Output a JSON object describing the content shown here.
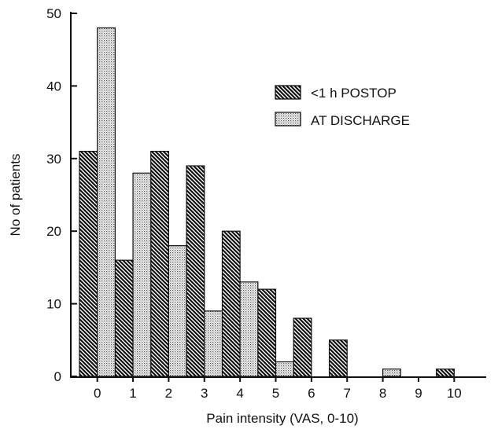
{
  "chart_data": {
    "type": "bar",
    "title": "",
    "xlabel": "Pain intensity (VAS, 0-10)",
    "ylabel": "No of patients",
    "categories": [
      "0",
      "1",
      "2",
      "3",
      "4",
      "5",
      "6",
      "7",
      "8",
      "9",
      "10"
    ],
    "ylim": [
      0,
      50
    ],
    "yticks": [
      "0",
      "10",
      "20",
      "30",
      "40",
      "50"
    ],
    "series": [
      {
        "name": "<1 h POSTOP",
        "values": [
          31,
          16,
          31,
          29,
          20,
          12,
          8,
          5,
          0,
          0,
          1
        ],
        "fill": "hatched-dark"
      },
      {
        "name": "AT DISCHARGE",
        "values": [
          48,
          28,
          18,
          9,
          13,
          2,
          0,
          0,
          1,
          0,
          0
        ],
        "fill": "dotted-light"
      }
    ],
    "legend_position": "top-right",
    "grid": false
  }
}
